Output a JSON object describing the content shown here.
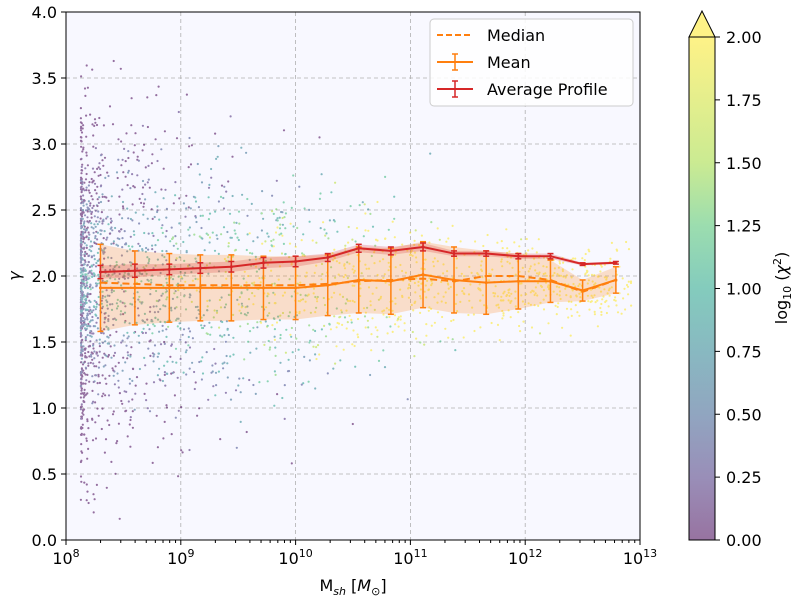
{
  "chart_data": {
    "type": "scatter",
    "xscale": "log",
    "xlabel": "M_sh [M_⊙]",
    "ylabel": "γ",
    "xlim_log10": [
      8,
      13
    ],
    "ylim": [
      0,
      4
    ],
    "grid": true,
    "x_tick_labels": [
      "10^8",
      "10^9",
      "10^10",
      "10^11",
      "10^12",
      "10^13"
    ],
    "x_tick_values_log10": [
      8,
      9,
      10,
      11,
      12,
      13
    ],
    "y_tick_labels": [
      "0.0",
      "0.5",
      "1.0",
      "1.5",
      "2.0",
      "2.5",
      "3.0",
      "3.5",
      "4.0"
    ],
    "y_tick_values": [
      0,
      0.5,
      1.0,
      1.5,
      2.0,
      2.5,
      3.0,
      3.5,
      4.0
    ],
    "colorbar": {
      "label": "log10(χ²)",
      "range": [
        0,
        2
      ],
      "extend": "max",
      "tick_labels": [
        "0.00",
        "0.25",
        "0.50",
        "0.75",
        "1.00",
        "1.25",
        "1.50",
        "1.75",
        "2.00"
      ],
      "tick_values": [
        0,
        0.25,
        0.5,
        0.75,
        1.0,
        1.25,
        1.5,
        1.75,
        2.0
      ],
      "colormap": "viridis"
    },
    "legend": {
      "placement": "top-right",
      "entries": [
        "Median",
        "Mean",
        "Average Profile"
      ]
    },
    "series": [
      {
        "name": "Median",
        "style": "dashed",
        "color": "#ff7f0e",
        "x_log10": [
          8.3,
          8.6,
          8.9,
          9.17,
          9.44,
          9.72,
          10.0,
          10.28,
          10.55,
          10.83,
          11.11,
          11.38,
          11.66,
          11.94,
          12.22,
          12.5,
          12.79
        ],
        "y": [
          1.95,
          1.94,
          1.93,
          1.93,
          1.93,
          1.93,
          1.93,
          1.94,
          1.96,
          1.97,
          1.98,
          1.96,
          2.0,
          2.0,
          1.97,
          1.88,
          1.97
        ]
      },
      {
        "name": "Mean",
        "style": "solid",
        "color": "#ff7f0e",
        "x_log10": [
          8.3,
          8.6,
          8.9,
          9.17,
          9.44,
          9.72,
          10.0,
          10.28,
          10.55,
          10.83,
          11.11,
          11.38,
          11.66,
          11.94,
          12.22,
          12.5,
          12.79
        ],
        "y": [
          1.91,
          1.91,
          1.91,
          1.91,
          1.91,
          1.91,
          1.91,
          1.93,
          1.97,
          1.96,
          2.01,
          1.97,
          1.95,
          1.96,
          1.96,
          1.89,
          1.97
        ],
        "yerr": [
          0.33,
          0.28,
          0.26,
          0.25,
          0.25,
          0.24,
          0.24,
          0.23,
          0.25,
          0.25,
          0.25,
          0.25,
          0.24,
          0.21,
          0.16,
          0.08,
          0.1
        ]
      },
      {
        "name": "Average Profile",
        "style": "solid",
        "color": "#d62728",
        "x_log10": [
          8.3,
          8.6,
          8.9,
          9.17,
          9.44,
          9.72,
          10.0,
          10.28,
          10.55,
          10.83,
          11.11,
          11.38,
          11.66,
          11.94,
          12.22,
          12.5,
          12.79
        ],
        "y": [
          2.03,
          2.04,
          2.05,
          2.06,
          2.07,
          2.1,
          2.11,
          2.14,
          2.21,
          2.19,
          2.22,
          2.17,
          2.17,
          2.15,
          2.15,
          2.09,
          2.1
        ],
        "yerr": [
          0.05,
          0.05,
          0.04,
          0.04,
          0.04,
          0.04,
          0.04,
          0.03,
          0.03,
          0.03,
          0.03,
          0.02,
          0.02,
          0.02,
          0.02,
          0.01,
          0.01
        ]
      }
    ]
  }
}
